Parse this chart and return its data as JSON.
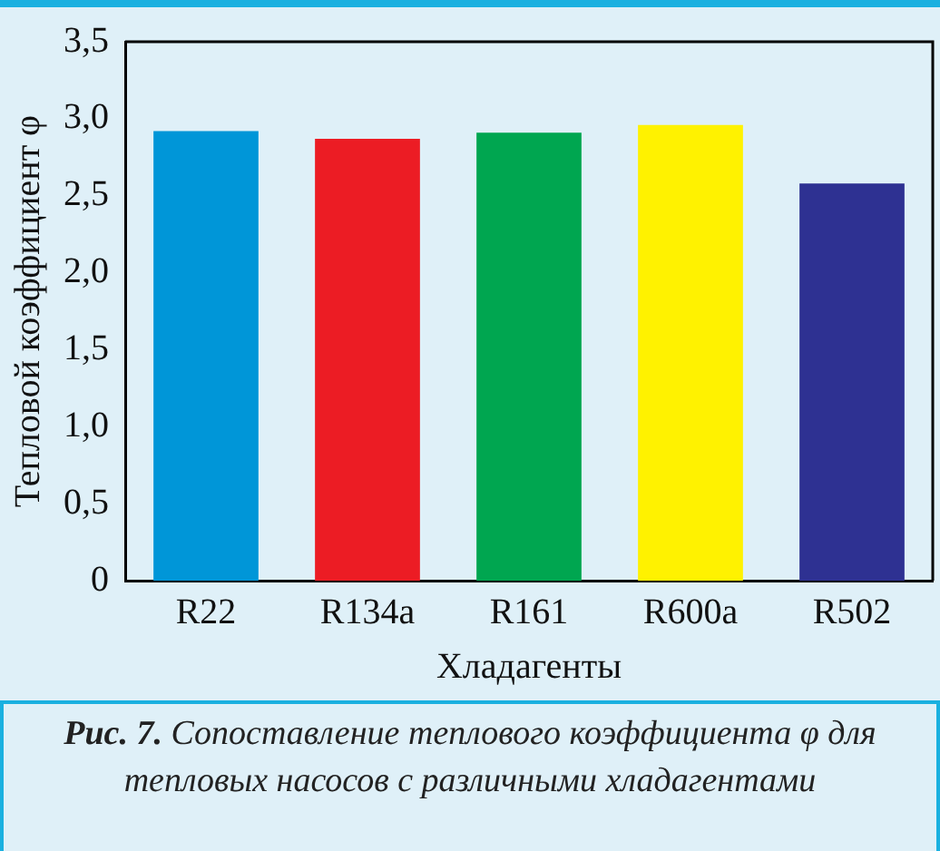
{
  "chart_data": {
    "type": "bar",
    "categories": [
      "R22",
      "R134a",
      "R161",
      "R600a",
      "R502"
    ],
    "values": [
      2.92,
      2.87,
      2.91,
      2.96,
      2.58
    ],
    "colors": [
      "#0096d8",
      "#ec1c24",
      "#00a650",
      "#fff200",
      "#2e3192"
    ],
    "ylabel": "Тепловой коэффициент φ",
    "xlabel": "Хладагенты",
    "ylim": [
      0,
      3.5
    ],
    "yticks": [
      {
        "value": 0,
        "label": "0"
      },
      {
        "value": 0.5,
        "label": "0,5"
      },
      {
        "value": 1,
        "label": "1,0"
      },
      {
        "value": 1.5,
        "label": "1,5"
      },
      {
        "value": 2,
        "label": "2,0"
      },
      {
        "value": 2.5,
        "label": "2,5"
      },
      {
        "value": 3,
        "label": "3,0"
      },
      {
        "value": 3.5,
        "label": "3,5"
      }
    ],
    "grid": false,
    "legend": false,
    "annotations": [
      "Рис. 7.",
      "Сопоставление теплового коэффициента φ для тепловых насосов с различными хладагентами"
    ]
  }
}
